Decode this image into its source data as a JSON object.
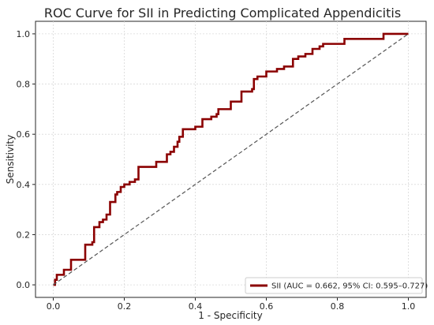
{
  "chart_data": {
    "type": "line",
    "title": "ROC Curve for SII in Predicting Complicated Appendicitis",
    "xlabel": "1 - Specificity",
    "ylabel": "Sensitivity",
    "xlim": [
      -0.05,
      1.05
    ],
    "ylim": [
      -0.05,
      1.05
    ],
    "xticks": [
      "0.0",
      "0.2",
      "0.4",
      "0.6",
      "0.8",
      "1.0"
    ],
    "yticks": [
      "0.0",
      "0.2",
      "0.4",
      "0.6",
      "0.8",
      "1.0"
    ],
    "grid": true,
    "legend_position": "lower-right",
    "series": [
      {
        "name": "SII (AUC = 0.662, 95% CI: 0.595–0.727)",
        "color": "#8b0000",
        "style": "step",
        "x": [
          0.0,
          0.005,
          0.01,
          0.03,
          0.05,
          0.08,
          0.09,
          0.11,
          0.115,
          0.13,
          0.14,
          0.15,
          0.16,
          0.175,
          0.18,
          0.19,
          0.2,
          0.215,
          0.23,
          0.24,
          0.245,
          0.29,
          0.32,
          0.33,
          0.34,
          0.35,
          0.355,
          0.365,
          0.4,
          0.42,
          0.445,
          0.46,
          0.465,
          0.5,
          0.51,
          0.53,
          0.56,
          0.565,
          0.575,
          0.6,
          0.615,
          0.63,
          0.65,
          0.675,
          0.69,
          0.71,
          0.73,
          0.75,
          0.76,
          0.78,
          0.82,
          0.86,
          0.93,
          0.95,
          1.0
        ],
        "y": [
          0.0,
          0.02,
          0.04,
          0.06,
          0.1,
          0.1,
          0.16,
          0.17,
          0.23,
          0.25,
          0.26,
          0.28,
          0.33,
          0.36,
          0.37,
          0.39,
          0.4,
          0.41,
          0.42,
          0.47,
          0.47,
          0.49,
          0.52,
          0.53,
          0.55,
          0.57,
          0.59,
          0.62,
          0.63,
          0.66,
          0.67,
          0.68,
          0.7,
          0.73,
          0.73,
          0.77,
          0.78,
          0.82,
          0.83,
          0.85,
          0.85,
          0.86,
          0.87,
          0.9,
          0.91,
          0.92,
          0.94,
          0.95,
          0.96,
          0.96,
          0.98,
          0.98,
          1.0,
          1.0,
          1.0
        ]
      },
      {
        "name": "",
        "color": "#555555",
        "style": "dashed",
        "x": [
          0.0,
          1.0
        ],
        "y": [
          0.0,
          1.0
        ]
      }
    ]
  }
}
